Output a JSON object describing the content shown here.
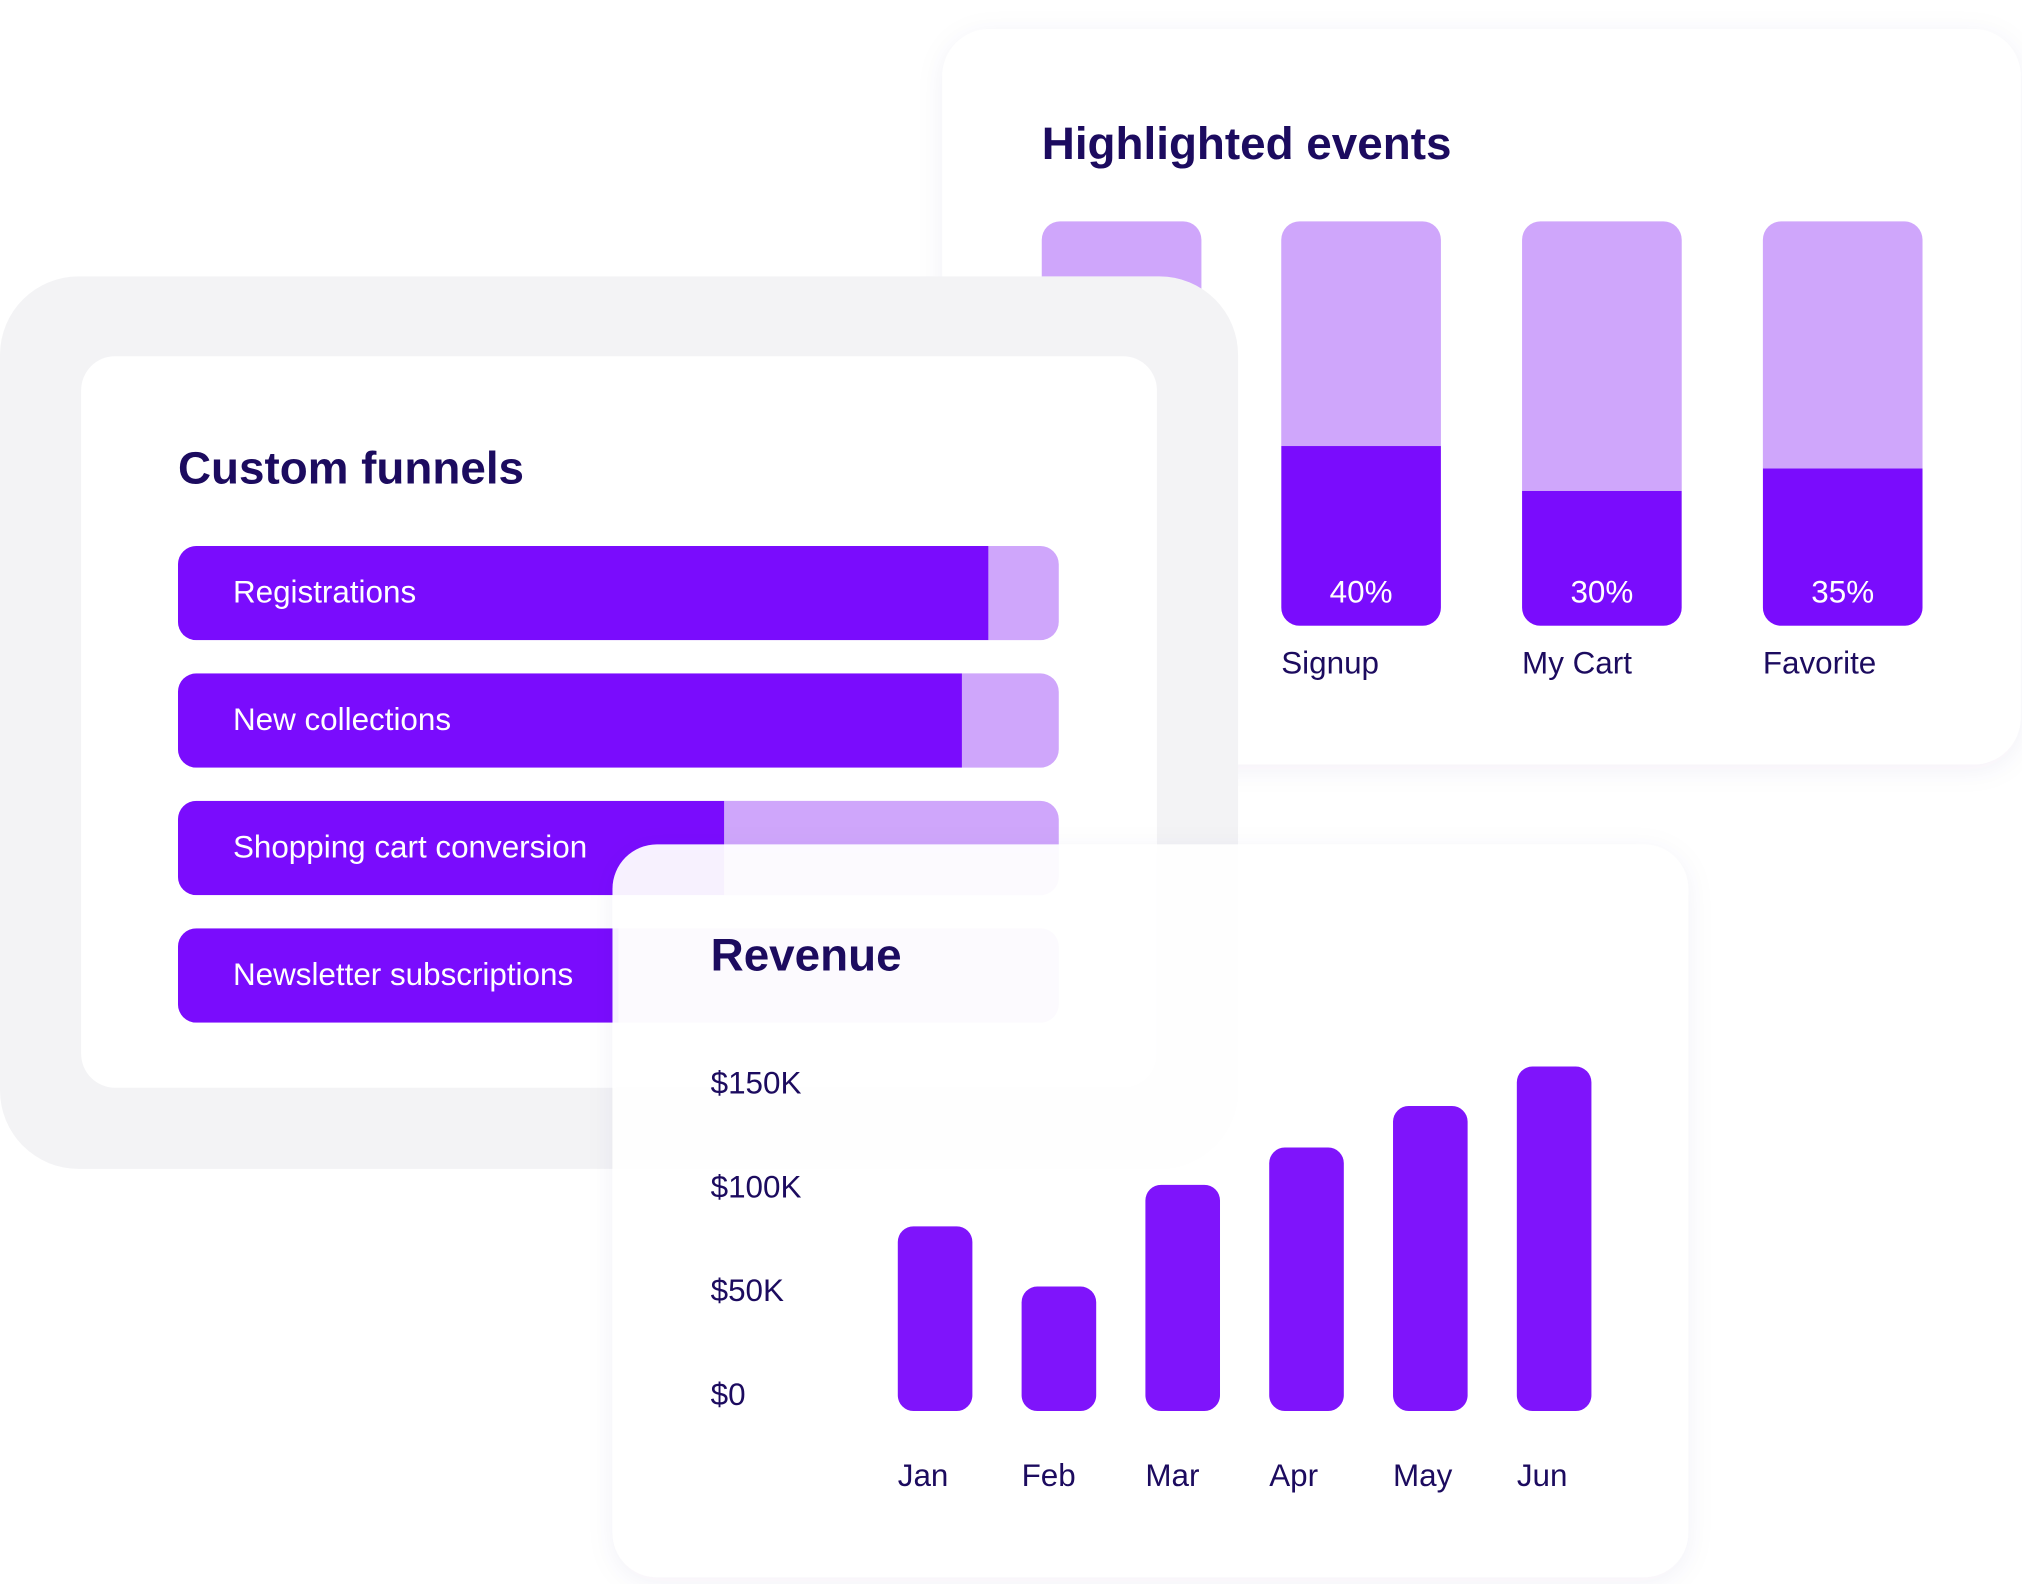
{
  "chart_data": [
    {
      "type": "hbar",
      "title": "Custom funnels",
      "categories": [
        "Registrations",
        "New collections",
        "Shopping cart conversion",
        "Newsletter subscriptions"
      ],
      "values": [
        92,
        89,
        62,
        50
      ],
      "xlim": [
        0,
        100
      ],
      "color": "#7a0cfd",
      "track_color": "#cfa6fb"
    },
    {
      "type": "bar",
      "title": "Highlighted events",
      "categories": [
        "Signup",
        "My Cart",
        "Favorite"
      ],
      "values": [
        40,
        30,
        35
      ],
      "value_labels": [
        "40%",
        "30%",
        "35%"
      ],
      "ylim": [
        0,
        90
      ],
      "color": "#7a0cfd",
      "track_color": "#cfa6fb"
    },
    {
      "type": "bar",
      "title": "Revenue",
      "categories": [
        "Jan",
        "Feb",
        "Mar",
        "Apr",
        "May",
        "Jun"
      ],
      "values": [
        89000,
        60000,
        109000,
        127000,
        147000,
        166000
      ],
      "ylim": [
        0,
        175000
      ],
      "yticks": [
        {
          "value": 0,
          "label": "$0"
        },
        {
          "value": 50000,
          "label": "$50K"
        },
        {
          "value": 100000,
          "label": "$100K"
        },
        {
          "value": 150000,
          "label": "$150K"
        }
      ],
      "grid": false,
      "color": "#7f14fb"
    }
  ]
}
